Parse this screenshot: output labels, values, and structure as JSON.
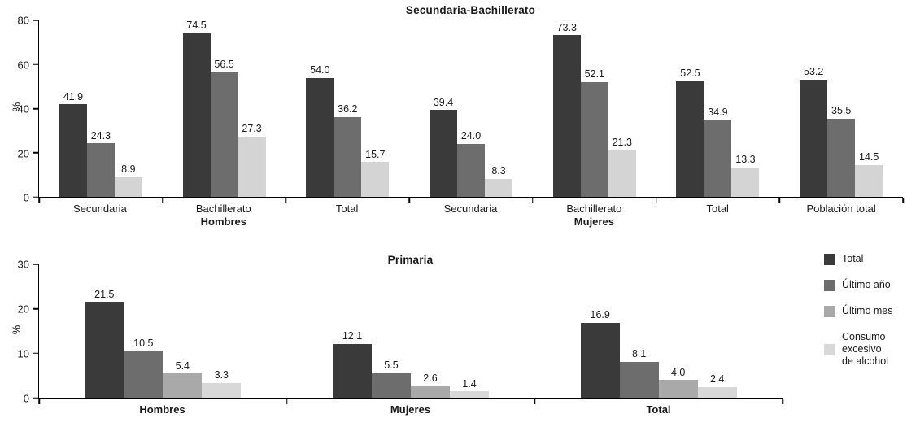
{
  "chart_data": [
    {
      "type": "bar",
      "title": "Secundaria-Bachillerato",
      "xlabel": "",
      "ylabel": "%",
      "ylim": [
        0,
        80
      ],
      "yticks": [
        0,
        20,
        40,
        60,
        80
      ],
      "grid": false,
      "bold_categories": false,
      "categories": [
        "Secundaria",
        "Bachillerato",
        "Total",
        "Secundaria",
        "Bachillerato",
        "Total",
        "Población total"
      ],
      "group_sublabels": [
        "",
        "Hombres",
        "",
        "",
        "Mujeres",
        "",
        ""
      ],
      "series": [
        {
          "name": "Total",
          "color": "#3a3a3a",
          "values": [
            41.9,
            74.5,
            54.0,
            39.4,
            73.3,
            52.5,
            53.2
          ]
        },
        {
          "name": "Último año",
          "color": "#6d6d6d",
          "values": [
            24.3,
            56.5,
            36.2,
            24.0,
            52.1,
            34.9,
            35.5
          ]
        },
        {
          "name": "Último mes",
          "color": "#d4d4d4",
          "values": [
            8.9,
            27.3,
            15.7,
            8.3,
            21.3,
            13.3,
            14.5
          ]
        }
      ]
    },
    {
      "type": "bar",
      "title": "Primaria",
      "xlabel": "",
      "ylabel": "%",
      "ylim": [
        0,
        30
      ],
      "yticks": [
        0,
        10,
        20,
        30
      ],
      "grid": false,
      "bold_categories": true,
      "categories": [
        "Hombres",
        "Mujeres",
        "Total"
      ],
      "group_sublabels": [
        "",
        "",
        ""
      ],
      "series": [
        {
          "name": "Total",
          "color": "#3a3a3a",
          "values": [
            21.5,
            12.1,
            16.9
          ]
        },
        {
          "name": "Último año",
          "color": "#6d6d6d",
          "values": [
            10.5,
            5.5,
            8.1
          ]
        },
        {
          "name": "Último mes",
          "color": "#a9a9a9",
          "values": [
            5.4,
            2.6,
            4.0
          ]
        },
        {
          "name": "Consumo excesivo de alcohol",
          "color": "#d8d8d8",
          "values": [
            3.3,
            1.4,
            2.4
          ]
        }
      ]
    }
  ],
  "legend": {
    "position": "right",
    "items": [
      {
        "label": "Total",
        "color": "#3a3a3a"
      },
      {
        "label": "Último año",
        "color": "#6d6d6d"
      },
      {
        "label": "Último mes",
        "color": "#a9a9a9"
      },
      {
        "label": "Consumo\nexcesivo\nde alcohol",
        "color": "#d8d8d8"
      }
    ]
  }
}
